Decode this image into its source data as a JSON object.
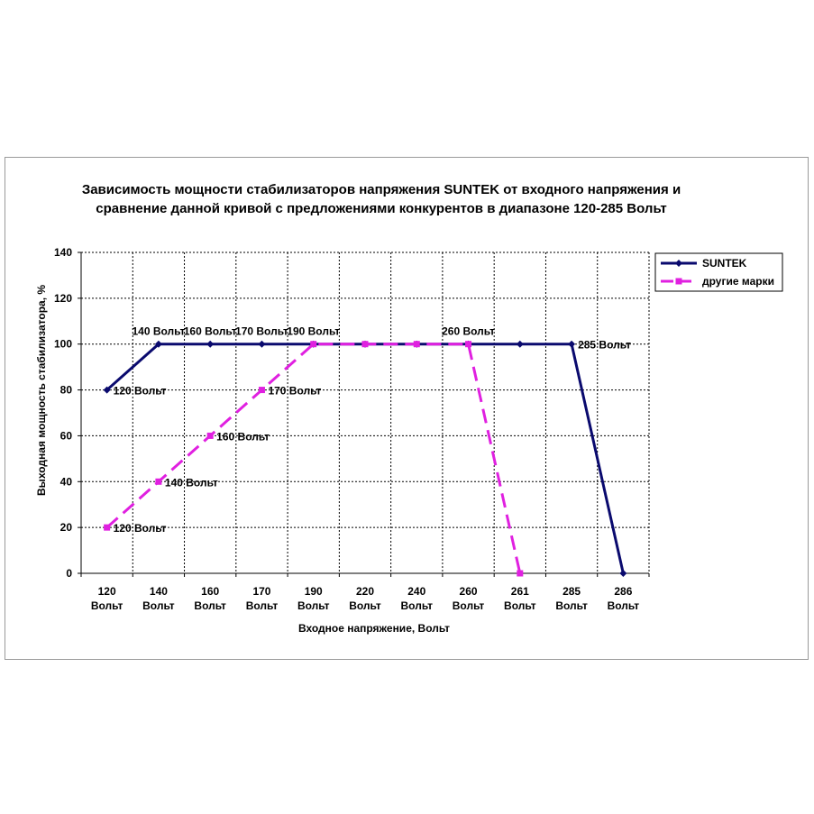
{
  "chart_data": {
    "type": "line",
    "title_lines": [
      "Зависимость  мощности стабилизаторов напряжения SUNTEK от входного напряжения и",
      "сравнение данной кривой с предложениями конкурентов в диапазоне 120-285 Вольт"
    ],
    "xlabel": "Входное напряжение, Вольт",
    "ylabel": "Выходная мощность стабилизатора, %",
    "categories": [
      [
        "120",
        "Вольт"
      ],
      [
        "140",
        "Вольт"
      ],
      [
        "160",
        "Вольт"
      ],
      [
        "170",
        "Вольт"
      ],
      [
        "190",
        "Вольт"
      ],
      [
        "220",
        "Вольт"
      ],
      [
        "240",
        "Вольт"
      ],
      [
        "260",
        "Вольт"
      ],
      [
        "261",
        "Вольт"
      ],
      [
        "285",
        "Вольт"
      ],
      [
        "286",
        "Вольт"
      ]
    ],
    "ylim": [
      0,
      140
    ],
    "yticks": [
      "0",
      "20",
      "40",
      "60",
      "80",
      "100",
      "120",
      "140"
    ],
    "grid": true,
    "legend_position": "top-right",
    "series": [
      {
        "name": "SUNTEK",
        "color": "#0a0a6e",
        "style": "solid",
        "marker": "diamond",
        "values": [
          80,
          100,
          100,
          100,
          100,
          100,
          100,
          100,
          100,
          100,
          0
        ],
        "point_labels": [
          "120 Вольт",
          "140 Вольт",
          "160 Вольт",
          "170 Вольт",
          "190 Вольт",
          "",
          "",
          "260 Вольт",
          "",
          "285 Вольт",
          ""
        ]
      },
      {
        "name": "другие марки",
        "color": "#e020e0",
        "style": "dashed",
        "marker": "square",
        "values": [
          20,
          40,
          60,
          80,
          100,
          100,
          100,
          100,
          0,
          null,
          null
        ],
        "point_labels": [
          "120 Вольт",
          "140 Вольт",
          "160 Вольт",
          "170 Вольт",
          "",
          "",
          "",
          "",
          "",
          "",
          ""
        ]
      }
    ]
  }
}
